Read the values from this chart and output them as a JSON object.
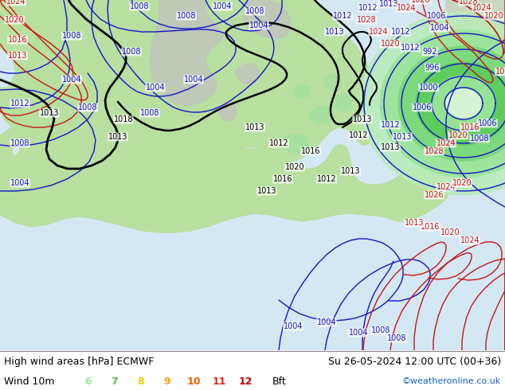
{
  "title_left": "High wind areas [hPa] ECMWF",
  "title_right": "Su 26-05-2024 12:00 UTC (00+36)",
  "subtitle_left": "Wind 10m",
  "legend_values": [
    "6",
    "7",
    "8",
    "9",
    "10",
    "11",
    "12"
  ],
  "legend_colors": [
    "#98e898",
    "#50c850",
    "#f0d000",
    "#f0a000",
    "#f06000",
    "#e82020",
    "#c00000"
  ],
  "legend_suffix": "Bft",
  "copyright": "©weatheronline.co.uk",
  "map_bg": "#e8e8e8",
  "ocean_color": "#d8eef8",
  "land_color_main": "#b8e0a0",
  "land_color_light": "#c8eab0",
  "wind_fill_light": "#b0e8b0",
  "wind_fill_mid": "#88d888",
  "wind_fill_dark": "#60c860",
  "isobar_blue": "#1414c8",
  "isobar_red": "#c81414",
  "isobar_black": "#000000",
  "font_size_title": 9,
  "font_size_legend": 9,
  "font_size_copyright": 8,
  "font_size_label": 7
}
